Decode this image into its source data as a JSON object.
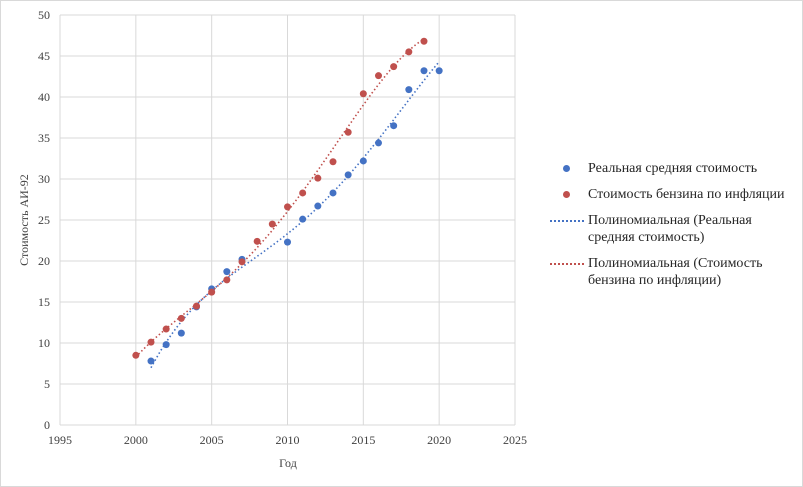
{
  "chart_data": {
    "type": "scatter",
    "x_label": "Год",
    "y_label": "Стоимость АИ-92",
    "xlim": [
      1995,
      2025
    ],
    "xticks": [
      1995,
      2000,
      2005,
      2010,
      2015,
      2020,
      2025
    ],
    "ylim": [
      0,
      50
    ],
    "yticks": [
      0,
      5,
      10,
      15,
      20,
      25,
      30,
      35,
      40,
      45,
      50
    ],
    "grid": true,
    "series": [
      {
        "name": "Реальная средняя стоимость",
        "color": "#4472c4",
        "x": [
          2001,
          2002,
          2003,
          2004,
          2005,
          2006,
          2007,
          2010,
          2011,
          2012,
          2013,
          2014,
          2015,
          2016,
          2017,
          2018,
          2019,
          2020
        ],
        "values": [
          7.8,
          9.8,
          11.2,
          14.4,
          16.6,
          18.7,
          20.2,
          22.3,
          25.1,
          26.7,
          28.3,
          30.5,
          32.2,
          34.4,
          36.5,
          40.9,
          43.2,
          43.2
        ],
        "trendline": "Полиномиальная (Реальная средняя стоимость)"
      },
      {
        "name": "Стоимость бензина по инфляции",
        "color": "#c0504d",
        "x": [
          2000,
          2001,
          2002,
          2003,
          2004,
          2005,
          2006,
          2007,
          2008,
          2009,
          2010,
          2011,
          2012,
          2013,
          2014,
          2015,
          2016,
          2017,
          2018,
          2019
        ],
        "values": [
          8.5,
          10.1,
          11.7,
          13.0,
          14.5,
          16.2,
          17.7,
          19.9,
          22.4,
          24.5,
          26.6,
          28.3,
          30.1,
          32.1,
          35.7,
          40.4,
          42.6,
          43.7,
          45.5,
          46.8
        ],
        "trendline": "Полиномиальная (Стоимость бензина по инфляции)"
      }
    ]
  }
}
